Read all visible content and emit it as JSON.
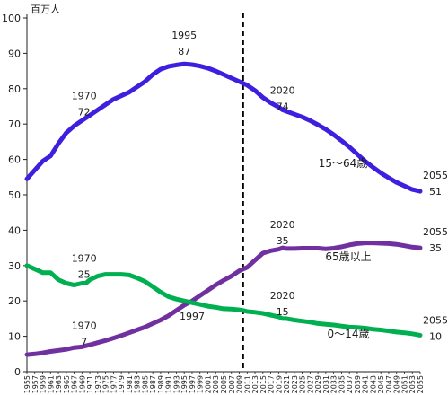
{
  "chart_data": {
    "type": "line",
    "y_unit_label": "百万人",
    "ylim": [
      0,
      100
    ],
    "y_ticks": [
      0,
      10,
      20,
      30,
      40,
      50,
      60,
      70,
      80,
      90,
      100
    ],
    "x_range": [
      1955,
      2055
    ],
    "x_ticks": [
      1955,
      1957,
      1959,
      1961,
      1963,
      1965,
      1967,
      1969,
      1971,
      1973,
      1975,
      1977,
      1979,
      1981,
      1983,
      1985,
      1987,
      1989,
      1991,
      1993,
      1995,
      1997,
      1999,
      2001,
      2003,
      2005,
      2007,
      2009,
      2011,
      2013,
      2015,
      2017,
      2019,
      2021,
      2023,
      2025,
      2027,
      2029,
      2031,
      2033,
      2035,
      2037,
      2039,
      2041,
      2043,
      2045,
      2047,
      2049,
      2051,
      2053,
      2055
    ],
    "divider_year": 2010,
    "grid": false,
    "series": [
      {
        "name": "15〜64歳",
        "color": "#3f1ee0",
        "points": [
          [
            1955,
            54.5
          ],
          [
            1957,
            57
          ],
          [
            1959,
            59.5
          ],
          [
            1961,
            61
          ],
          [
            1963,
            64.5
          ],
          [
            1965,
            67.5
          ],
          [
            1967,
            69.5
          ],
          [
            1969,
            71
          ],
          [
            1971,
            72.5
          ],
          [
            1973,
            74
          ],
          [
            1975,
            75.5
          ],
          [
            1977,
            77
          ],
          [
            1979,
            78
          ],
          [
            1981,
            79
          ],
          [
            1983,
            80.5
          ],
          [
            1985,
            82
          ],
          [
            1987,
            84
          ],
          [
            1989,
            85.5
          ],
          [
            1991,
            86.3
          ],
          [
            1993,
            86.7
          ],
          [
            1995,
            87
          ],
          [
            1997,
            86.8
          ],
          [
            1999,
            86.4
          ],
          [
            2001,
            85.8
          ],
          [
            2003,
            85
          ],
          [
            2005,
            84
          ],
          [
            2007,
            83
          ],
          [
            2009,
            82
          ],
          [
            2010,
            81.5
          ],
          [
            2011,
            81
          ],
          [
            2013,
            79.5
          ],
          [
            2015,
            77.5
          ],
          [
            2017,
            76
          ],
          [
            2019,
            74.8
          ],
          [
            2020,
            74
          ],
          [
            2021,
            73.6
          ],
          [
            2023,
            72.8
          ],
          [
            2025,
            72
          ],
          [
            2027,
            71
          ],
          [
            2029,
            69.8
          ],
          [
            2031,
            68.5
          ],
          [
            2033,
            67
          ],
          [
            2035,
            65.3
          ],
          [
            2037,
            63.5
          ],
          [
            2039,
            61.5
          ],
          [
            2041,
            59.5
          ],
          [
            2043,
            57.8
          ],
          [
            2045,
            56.2
          ],
          [
            2047,
            54.8
          ],
          [
            2049,
            53.5
          ],
          [
            2051,
            52.5
          ],
          [
            2053,
            51.5
          ],
          [
            2055,
            51
          ]
        ]
      },
      {
        "name": "65歳以上",
        "color": "#7030a0",
        "points": [
          [
            1955,
            4.8
          ],
          [
            1957,
            5
          ],
          [
            1959,
            5.3
          ],
          [
            1961,
            5.7
          ],
          [
            1963,
            6
          ],
          [
            1965,
            6.3
          ],
          [
            1967,
            6.8
          ],
          [
            1969,
            7
          ],
          [
            1970,
            7.3
          ],
          [
            1971,
            7.6
          ],
          [
            1973,
            8.2
          ],
          [
            1975,
            8.8
          ],
          [
            1977,
            9.5
          ],
          [
            1979,
            10.2
          ],
          [
            1981,
            11
          ],
          [
            1983,
            11.8
          ],
          [
            1985,
            12.6
          ],
          [
            1987,
            13.6
          ],
          [
            1989,
            14.6
          ],
          [
            1991,
            15.8
          ],
          [
            1993,
            17.3
          ],
          [
            1995,
            18.8
          ],
          [
            1997,
            20
          ],
          [
            1999,
            21.5
          ],
          [
            2001,
            23
          ],
          [
            2003,
            24.5
          ],
          [
            2005,
            25.8
          ],
          [
            2007,
            27
          ],
          [
            2009,
            28.5
          ],
          [
            2010,
            29
          ],
          [
            2011,
            29.5
          ],
          [
            2013,
            31.5
          ],
          [
            2015,
            33.5
          ],
          [
            2017,
            34.2
          ],
          [
            2019,
            34.6
          ],
          [
            2020,
            35
          ],
          [
            2021,
            34.8
          ],
          [
            2023,
            34.8
          ],
          [
            2025,
            34.9
          ],
          [
            2027,
            34.9
          ],
          [
            2029,
            34.9
          ],
          [
            2031,
            34.7
          ],
          [
            2033,
            34.9
          ],
          [
            2035,
            35.3
          ],
          [
            2037,
            35.8
          ],
          [
            2039,
            36.2
          ],
          [
            2041,
            36.4
          ],
          [
            2043,
            36.4
          ],
          [
            2045,
            36.3
          ],
          [
            2047,
            36.2
          ],
          [
            2049,
            36
          ],
          [
            2051,
            35.6
          ],
          [
            2053,
            35.2
          ],
          [
            2055,
            35
          ]
        ]
      },
      {
        "name": "0〜14歳",
        "color": "#00b050",
        "points": [
          [
            1955,
            30
          ],
          [
            1957,
            29
          ],
          [
            1959,
            28
          ],
          [
            1961,
            28
          ],
          [
            1963,
            26
          ],
          [
            1965,
            25
          ],
          [
            1967,
            24.5
          ],
          [
            1969,
            25
          ],
          [
            1970,
            25
          ],
          [
            1971,
            26
          ],
          [
            1973,
            27
          ],
          [
            1975,
            27.5
          ],
          [
            1977,
            27.5
          ],
          [
            1979,
            27.5
          ],
          [
            1981,
            27.3
          ],
          [
            1983,
            26.5
          ],
          [
            1985,
            25.5
          ],
          [
            1987,
            24
          ],
          [
            1989,
            22.5
          ],
          [
            1991,
            21.2
          ],
          [
            1993,
            20.5
          ],
          [
            1995,
            20
          ],
          [
            1997,
            19.5
          ],
          [
            1999,
            19
          ],
          [
            2001,
            18.5
          ],
          [
            2003,
            18.2
          ],
          [
            2005,
            17.8
          ],
          [
            2007,
            17.7
          ],
          [
            2009,
            17.5
          ],
          [
            2010,
            17.3
          ],
          [
            2011,
            17
          ],
          [
            2013,
            16.8
          ],
          [
            2015,
            16.5
          ],
          [
            2017,
            16
          ],
          [
            2019,
            15.5
          ],
          [
            2020,
            15
          ],
          [
            2021,
            15
          ],
          [
            2023,
            14.6
          ],
          [
            2025,
            14.3
          ],
          [
            2027,
            14
          ],
          [
            2029,
            13.6
          ],
          [
            2031,
            13.4
          ],
          [
            2033,
            13.2
          ],
          [
            2035,
            12.9
          ],
          [
            2037,
            12.6
          ],
          [
            2039,
            12.5
          ],
          [
            2041,
            12.3
          ],
          [
            2043,
            12
          ],
          [
            2045,
            11.8
          ],
          [
            2047,
            11.5
          ],
          [
            2049,
            11.2
          ],
          [
            2051,
            11
          ],
          [
            2053,
            10.7
          ],
          [
            2055,
            10.3
          ]
        ]
      }
    ],
    "annotations": [
      {
        "lines": [
          "1995",
          "87"
        ],
        "year": 1995,
        "value": 87
      },
      {
        "lines": [
          "1970",
          "72"
        ],
        "year": 1970,
        "value": 72
      },
      {
        "lines": [
          "2020",
          "74"
        ],
        "year": 2020,
        "value": 74
      },
      {
        "lines": [
          "2055",
          "51"
        ],
        "year": 2055,
        "value": 51
      },
      {
        "lines": [
          "2020",
          "35"
        ],
        "year": 2020,
        "value": 35
      },
      {
        "lines": [
          "2055",
          "35"
        ],
        "year": 2055,
        "value": 35
      },
      {
        "lines": [
          "1970",
          "25"
        ],
        "year": 1970,
        "value": 25
      },
      {
        "lines": [
          "1997"
        ],
        "year": 1997,
        "value": 20
      },
      {
        "lines": [
          "2020",
          "15"
        ],
        "year": 2020,
        "value": 15
      },
      {
        "lines": [
          "1970",
          "7"
        ],
        "year": 1970,
        "value": 7
      },
      {
        "lines": [
          "2055",
          "10"
        ],
        "year": 2055,
        "value": 10
      }
    ],
    "series_labels": [
      "15〜64歳",
      "65歳以上",
      "0〜14歳"
    ]
  }
}
